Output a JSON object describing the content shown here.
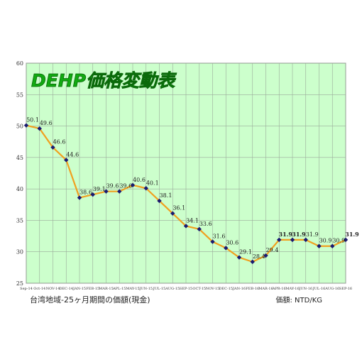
{
  "chart_data": {
    "type": "line",
    "title": "DEHP価格変動表",
    "xlabel": "",
    "ylabel": "",
    "ylim": [
      25,
      60
    ],
    "yticks": [
      25,
      30,
      35,
      40,
      45,
      50,
      55,
      60
    ],
    "grid": true,
    "categories": [
      "Sep-14",
      "Oct-14",
      "NOV-14",
      "DEC-14",
      "JAN-15",
      "FEB-15",
      "MAR-15",
      "APL-15",
      "MAY-15",
      "JUN-15",
      "JUL-15",
      "AUG-15",
      "SEP-15",
      "OCT-15",
      "NOV-15",
      "DEC-15",
      "JAN-16",
      "FEB-16",
      "MAR-16",
      "APR-16",
      "MAY-16",
      "JUN-16",
      "JUL-16",
      "AUG-16",
      "SEP-16"
    ],
    "values": [
      50.1,
      49.6,
      46.6,
      44.6,
      38.6,
      39.1,
      39.6,
      39.6,
      40.6,
      40.1,
      38.1,
      36.1,
      34.1,
      33.6,
      31.6,
      30.6,
      29.1,
      28.4,
      29.4,
      31.9,
      31.9,
      31.9,
      30.9,
      30.9,
      31.9
    ],
    "data_labels": [
      "50.1",
      "49.6",
      "46.6",
      "44.6",
      "38.6",
      "39.1",
      "39.6",
      "39.6",
      "40.6",
      "40.1",
      "38.1",
      "36.1",
      "34.1",
      "33.6",
      "31.6",
      "30.6",
      "29.1",
      "28.4",
      "29.4",
      "31.9",
      "31.9",
      "31.9",
      "30.9",
      "30.9",
      "31.9"
    ],
    "bold_labels": [
      19,
      20,
      24
    ],
    "colors": {
      "plot_bg": "#ccffcc",
      "grid": "#9aaa9a",
      "line": "#f0a020",
      "marker": "#1a1a70",
      "title": "#11aa11",
      "title_stroke": "#0a6a0a"
    }
  },
  "footer": {
    "left": "台湾地域-25ヶ月期間の価額(現金)",
    "right": "価額: NTD/KG"
  }
}
